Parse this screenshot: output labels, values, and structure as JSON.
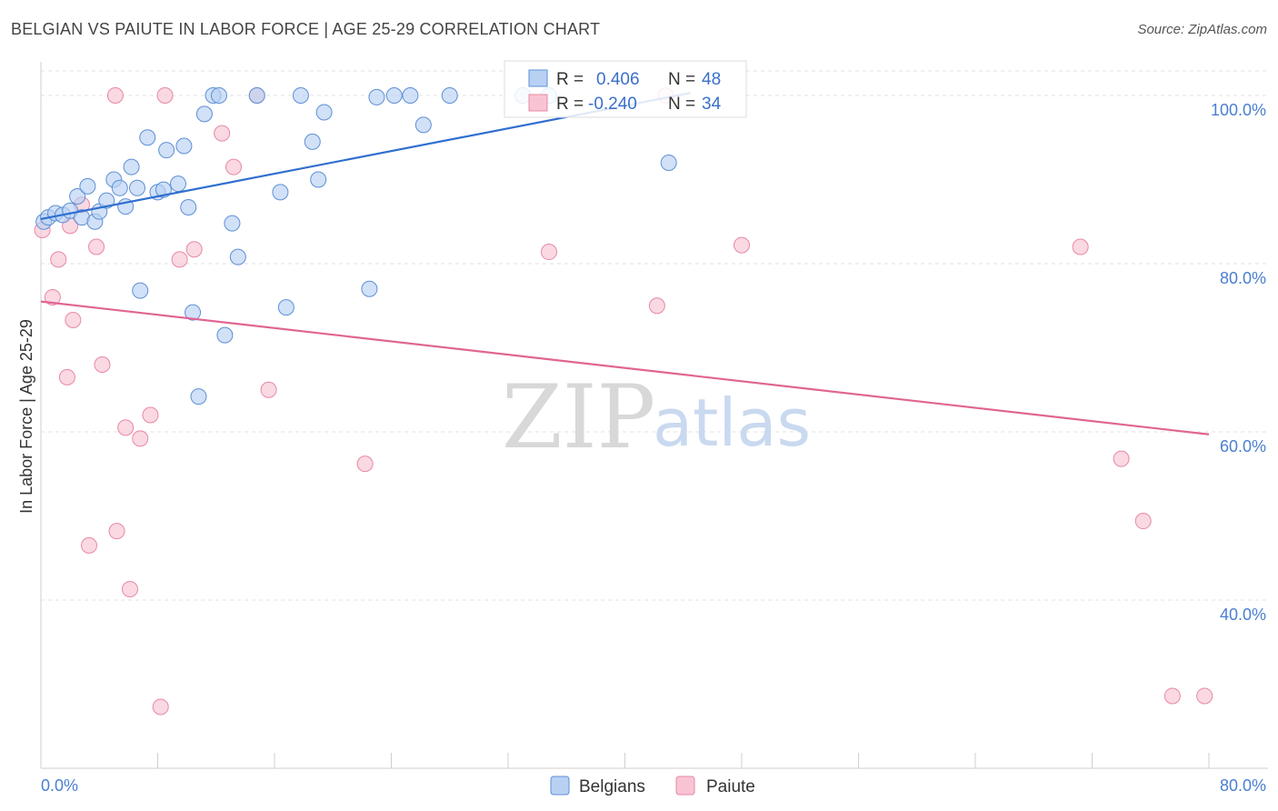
{
  "title": "BELGIAN VS PAIUTE IN LABOR FORCE | AGE 25-29 CORRELATION CHART",
  "source": "Source: ZipAtlas.com",
  "watermark": {
    "zip": "ZIP",
    "atlas": "atlas"
  },
  "colors": {
    "belgians_fill": "#b8d1f3",
    "belgians_stroke": "#5e90d6",
    "belgians_line": "#2f6fcf",
    "paiute_fill": "#f8c4d3",
    "paiute_stroke": "#e888a6",
    "paiute_line": "#e06592",
    "grid": "#e2e2e2"
  },
  "legend": {
    "rows": [
      {
        "r_label": "R =",
        "r_value": "0.406",
        "n_label": "N =",
        "n_value": "48"
      },
      {
        "r_label": "R =",
        "r_value": "-0.240",
        "n_label": "N =",
        "n_value": "34"
      }
    ]
  },
  "bottom_legend": {
    "belgians": "Belgians",
    "paiute": "Paiute"
  },
  "chart_data": {
    "type": "scatter",
    "title": "BELGIAN VS PAIUTE IN LABOR FORCE | AGE 25-29 CORRELATION CHART",
    "ylabel": "In Labor Force | Age 25-29",
    "xlabel": "",
    "xlim": [
      0,
      80
    ],
    "ylim": [
      20,
      104
    ],
    "x_tick_labels": [
      "0.0%",
      "80.0%"
    ],
    "y_tick_values": [
      40,
      60,
      80,
      100
    ],
    "y_tick_labels": [
      "40.0%",
      "60.0%",
      "80.0%",
      "100.0%"
    ],
    "series": [
      {
        "name": "Belgians",
        "R": 0.406,
        "N": 48,
        "trend": {
          "x": [
            0,
            44.5
          ],
          "y": [
            85.3,
            100.3
          ]
        },
        "points": [
          [
            0.2,
            85.0
          ],
          [
            0.5,
            85.5
          ],
          [
            1.0,
            86.0
          ],
          [
            1.5,
            85.8
          ],
          [
            2.0,
            86.3
          ],
          [
            2.5,
            88.0
          ],
          [
            2.8,
            85.5
          ],
          [
            3.2,
            89.2
          ],
          [
            3.7,
            85.0
          ],
          [
            4.0,
            86.2
          ],
          [
            4.5,
            87.5
          ],
          [
            5.0,
            90.0
          ],
          [
            5.4,
            89.0
          ],
          [
            5.8,
            86.8
          ],
          [
            6.2,
            91.5
          ],
          [
            6.6,
            89.0
          ],
          [
            7.3,
            95.0
          ],
          [
            8.0,
            88.5
          ],
          [
            8.6,
            93.5
          ],
          [
            8.4,
            88.8
          ],
          [
            9.4,
            89.5
          ],
          [
            9.8,
            94.0
          ],
          [
            10.1,
            86.7
          ],
          [
            10.4,
            74.2
          ],
          [
            11.2,
            97.8
          ],
          [
            11.8,
            100.0
          ],
          [
            12.2,
            100.0
          ],
          [
            12.6,
            71.5
          ],
          [
            13.1,
            84.8
          ],
          [
            13.5,
            80.8
          ],
          [
            14.8,
            100.0
          ],
          [
            16.4,
            88.5
          ],
          [
            16.8,
            74.8
          ],
          [
            17.8,
            100.0
          ],
          [
            18.6,
            94.5
          ],
          [
            19.0,
            90.0
          ],
          [
            19.4,
            98.0
          ],
          [
            22.5,
            77.0
          ],
          [
            23.0,
            99.8
          ],
          [
            24.2,
            100.0
          ],
          [
            25.3,
            100.0
          ],
          [
            26.2,
            96.5
          ],
          [
            28.0,
            100.0
          ],
          [
            33.0,
            100.0
          ],
          [
            34.8,
            100.0
          ],
          [
            43.0,
            92.0
          ],
          [
            10.8,
            64.2
          ],
          [
            6.8,
            76.8
          ]
        ]
      },
      {
        "name": "Paiute",
        "R": -0.24,
        "N": 34,
        "trend": {
          "x": [
            0,
            80
          ],
          "y": [
            75.5,
            59.7
          ]
        },
        "points": [
          [
            0.1,
            84.0
          ],
          [
            0.8,
            76.0
          ],
          [
            1.2,
            80.5
          ],
          [
            1.8,
            66.5
          ],
          [
            2.2,
            73.3
          ],
          [
            2.8,
            87.0
          ],
          [
            3.3,
            46.5
          ],
          [
            3.8,
            82.0
          ],
          [
            4.2,
            68.0
          ],
          [
            5.1,
            100.0
          ],
          [
            5.2,
            48.2
          ],
          [
            5.8,
            60.5
          ],
          [
            6.1,
            41.3
          ],
          [
            6.8,
            59.2
          ],
          [
            7.5,
            62.0
          ],
          [
            8.2,
            27.3
          ],
          [
            8.5,
            100.0
          ],
          [
            9.5,
            80.5
          ],
          [
            10.5,
            81.7
          ],
          [
            12.4,
            95.5
          ],
          [
            13.2,
            91.5
          ],
          [
            14.8,
            100.0
          ],
          [
            15.6,
            65.0
          ],
          [
            22.2,
            56.2
          ],
          [
            34.8,
            81.4
          ],
          [
            42.2,
            75.0
          ],
          [
            42.8,
            100.0
          ],
          [
            48.0,
            82.2
          ],
          [
            71.2,
            82.0
          ],
          [
            74.0,
            56.8
          ],
          [
            75.5,
            49.4
          ],
          [
            77.5,
            28.6
          ],
          [
            79.7,
            28.6
          ],
          [
            2.0,
            84.5
          ]
        ]
      }
    ]
  }
}
